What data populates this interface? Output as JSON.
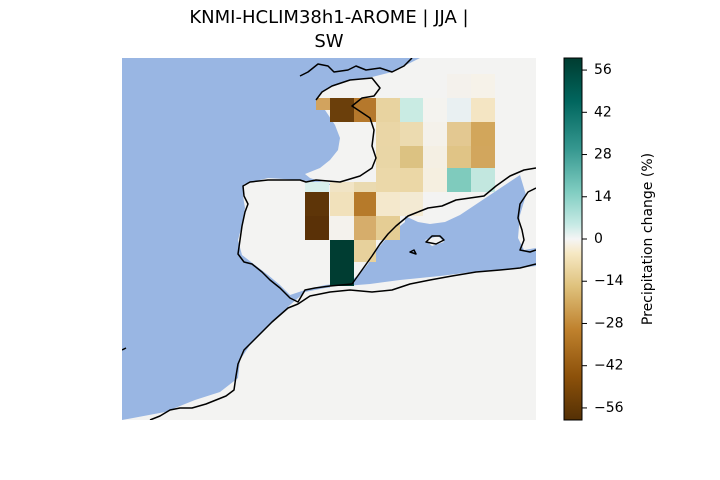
{
  "title_lines": [
    "KNMI-HCLIM38h1-AROME | JJA |",
    "SW"
  ],
  "colorbar": {
    "label": "Precipitation change (%)",
    "min": -60,
    "max": 60,
    "ticks": [
      "56",
      "42",
      "28",
      "14",
      "0",
      "−14",
      "−28",
      "−42",
      "−56"
    ],
    "tick_values": [
      56,
      42,
      28,
      14,
      0,
      -14,
      -28,
      -42,
      -56
    ],
    "colormap": "BrBG"
  },
  "colors": {
    "sea": "#99b6e3",
    "land_no_data": "#f3f3f2",
    "coastline": "#000000"
  }
}
